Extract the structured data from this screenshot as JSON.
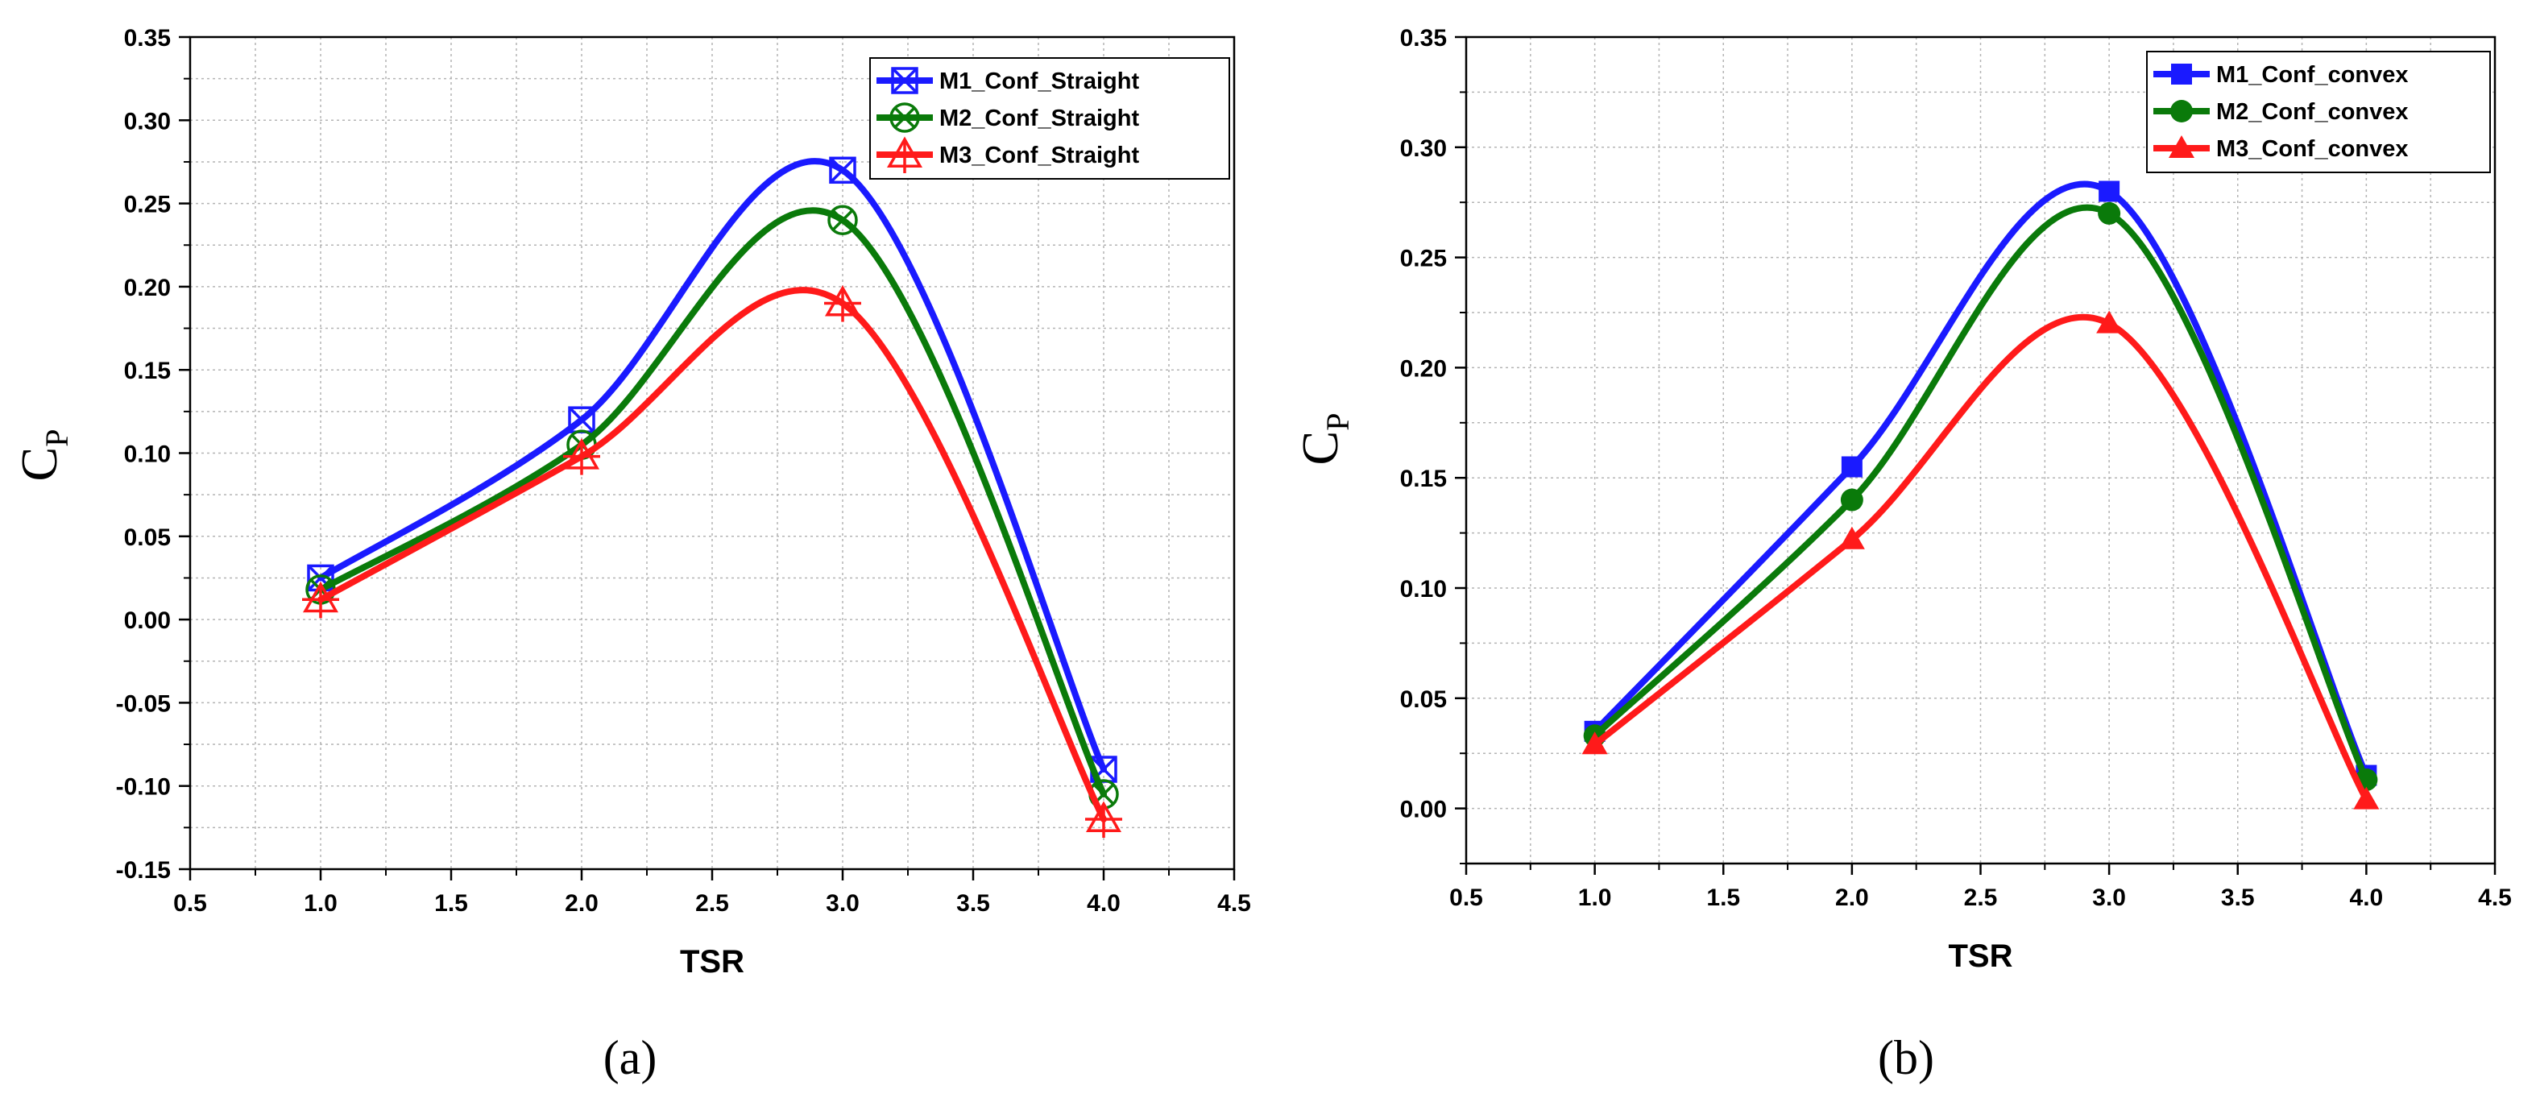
{
  "chart_data": [
    {
      "type": "line",
      "panel_label": "(a)",
      "xlabel": "TSR",
      "ylabel": "C",
      "ylabel_subscript": "P",
      "xlim": [
        0.5,
        4.5
      ],
      "ylim": [
        -0.15,
        0.35
      ],
      "xticks": [
        "0.5",
        "1.0",
        "1.5",
        "2.0",
        "2.5",
        "3.0",
        "3.5",
        "4.0",
        "4.5"
      ],
      "yticks": [
        "-0.15",
        "-0.10",
        "-0.05",
        "0.00",
        "0.05",
        "0.10",
        "0.15",
        "0.20",
        "0.25",
        "0.30",
        "0.35"
      ],
      "grid": true,
      "legend_position": "top-right",
      "x": [
        1.0,
        2.0,
        3.0,
        4.0
      ],
      "series": [
        {
          "name": "M1_Conf_Straight",
          "color": "#1a1aff",
          "marker": "square-x",
          "values": [
            0.025,
            0.12,
            0.27,
            -0.09
          ]
        },
        {
          "name": "M2_Conf_Straight",
          "color": "#0a7a0a",
          "marker": "circle-x",
          "values": [
            0.018,
            0.105,
            0.24,
            -0.105
          ]
        },
        {
          "name": "M3_Conf_Straight",
          "color": "#ff1a1a",
          "marker": "triangle-cross",
          "values": [
            0.012,
            0.098,
            0.19,
            -0.12
          ]
        }
      ]
    },
    {
      "type": "line",
      "panel_label": "(b)",
      "xlabel": "TSR",
      "ylabel": "C",
      "ylabel_subscript": "P",
      "xlim": [
        0.5,
        4.5
      ],
      "ylim": [
        -0.025,
        0.35
      ],
      "xticks": [
        "0.5",
        "1.0",
        "1.5",
        "2.0",
        "2.5",
        "3.0",
        "3.5",
        "4.0",
        "4.5"
      ],
      "yticks": [
        "0.00",
        "0.05",
        "0.10",
        "0.15",
        "0.20",
        "0.25",
        "0.30",
        "0.35"
      ],
      "grid": true,
      "legend_position": "top-right",
      "x": [
        1.0,
        2.0,
        3.0,
        4.0
      ],
      "series": [
        {
          "name": "M1_Conf_convex",
          "color": "#1a1aff",
          "marker": "filled-square",
          "values": [
            0.035,
            0.155,
            0.28,
            0.015
          ]
        },
        {
          "name": "M2_Conf_convex",
          "color": "#0a7a0a",
          "marker": "filled-circle",
          "values": [
            0.033,
            0.14,
            0.27,
            0.013
          ]
        },
        {
          "name": "M3_Conf_convex",
          "color": "#ff1a1a",
          "marker": "filled-triangle",
          "values": [
            0.029,
            0.122,
            0.22,
            0.004
          ]
        }
      ]
    }
  ]
}
